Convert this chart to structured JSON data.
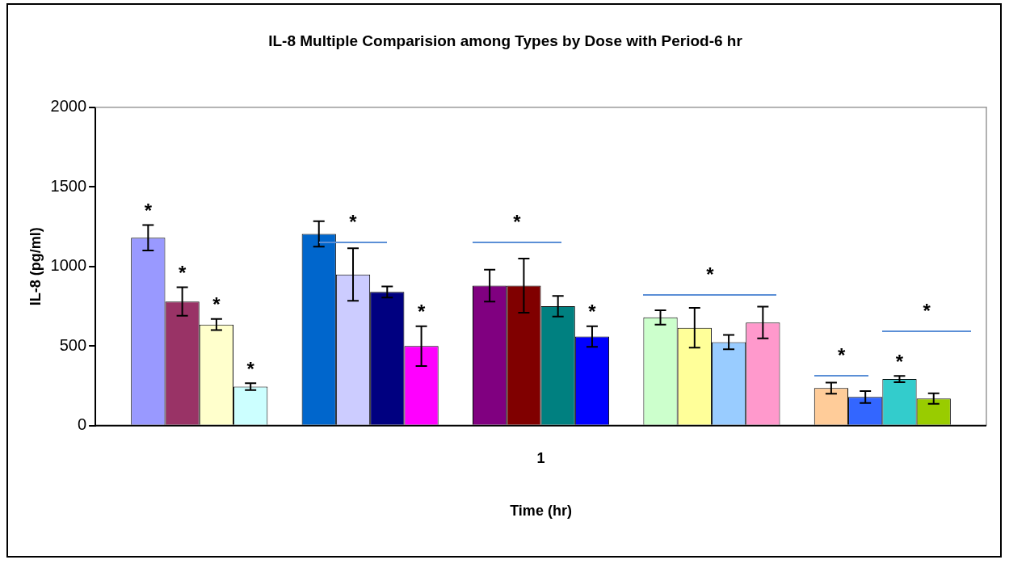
{
  "chart_data": {
    "type": "bar",
    "title": "IL-8 Multiple Comparision among Types by Dose with Period-6 hr",
    "xlabel": "Time (hr)",
    "ylabel": "IL-8 (pg/ml)",
    "categories": [
      "1"
    ],
    "ylim": [
      0,
      2000
    ],
    "yticks": [
      0,
      500,
      1000,
      1500,
      2000
    ],
    "grid": false,
    "legend": false,
    "series": [
      {
        "color": "#9999ff",
        "values": [
          1180
        ],
        "errors": [
          80
        ],
        "value_labels": [
          "*"
        ]
      },
      {
        "color": "#993366",
        "values": [
          780
        ],
        "errors": [
          90
        ],
        "value_labels": [
          "*"
        ]
      },
      {
        "color": "#ffffcc",
        "values": [
          635
        ],
        "errors": [
          35
        ],
        "value_labels": [
          "*"
        ]
      },
      {
        "color": "#ccffff",
        "values": [
          245
        ],
        "errors": [
          22
        ],
        "value_labels": [
          "*"
        ]
      },
      {
        "color": "#0066cc",
        "values": [
          1205
        ],
        "errors": [
          80
        ],
        "value_labels": [
          null
        ]
      },
      {
        "color": "#ccccff",
        "values": [
          950
        ],
        "errors": [
          165
        ],
        "value_labels": [
          null
        ]
      },
      {
        "color": "#000080",
        "values": [
          840
        ],
        "errors": [
          35
        ],
        "value_labels": [
          null
        ]
      },
      {
        "color": "#ff00ff",
        "values": [
          500
        ],
        "errors": [
          125
        ],
        "value_labels": [
          "*"
        ]
      },
      {
        "color": "#800080",
        "values": [
          880
        ],
        "errors": [
          100
        ],
        "value_labels": [
          null
        ]
      },
      {
        "color": "#800000",
        "values": [
          880
        ],
        "errors": [
          170
        ],
        "value_labels": [
          null
        ]
      },
      {
        "color": "#008080",
        "values": [
          750
        ],
        "errors": [
          65
        ],
        "value_labels": [
          null
        ]
      },
      {
        "color": "#0000ff",
        "values": [
          560
        ],
        "errors": [
          65
        ],
        "value_labels": [
          "*"
        ]
      },
      {
        "color": "#ccffcc",
        "values": [
          680
        ],
        "errors": [
          45
        ],
        "value_labels": [
          null
        ]
      },
      {
        "color": "#ffff99",
        "values": [
          615
        ],
        "errors": [
          125
        ],
        "value_labels": [
          null
        ]
      },
      {
        "color": "#99ccff",
        "values": [
          525
        ],
        "errors": [
          45
        ],
        "value_labels": [
          null
        ]
      },
      {
        "color": "#ff99cc",
        "values": [
          648
        ],
        "errors": [
          100
        ],
        "value_labels": [
          null
        ]
      },
      {
        "color": "#ffcc99",
        "values": [
          236
        ],
        "errors": [
          35
        ],
        "value_labels": [
          null
        ]
      },
      {
        "color": "#3366ff",
        "values": [
          180
        ],
        "errors": [
          37
        ],
        "value_labels": [
          null
        ]
      },
      {
        "color": "#33cccc",
        "values": [
          293
        ],
        "errors": [
          20
        ],
        "value_labels": [
          "*"
        ]
      },
      {
        "color": "#99cc00",
        "values": [
          170
        ],
        "errors": [
          33
        ],
        "value_labels": [
          null
        ]
      }
    ],
    "annotations": [
      "*",
      "*",
      "*",
      "*",
      "*"
    ]
  }
}
